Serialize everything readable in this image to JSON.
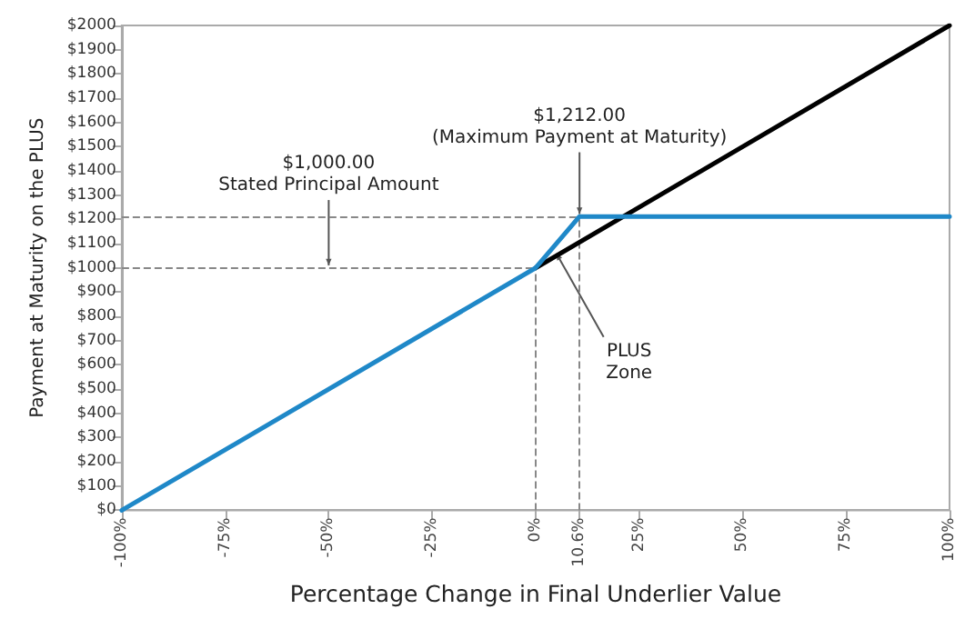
{
  "chart_data": {
    "type": "line",
    "xlabel": "Percentage Change in Final Underlier Value",
    "ylabel": "Payment at Maturity on the PLUS",
    "series": [
      {
        "color": "#000000",
        "x": [
          0,
          100
        ],
        "values": [
          1000,
          2000
        ]
      },
      {
        "color": "#1f88c8",
        "x": [
          -100,
          0,
          10.6,
          100
        ],
        "values": [
          0,
          1000,
          1212,
          1212
        ]
      }
    ],
    "xlim": [
      -100,
      100
    ],
    "xticks": [
      {
        "value": -100,
        "label": "-100%"
      },
      {
        "value": -75,
        "label": "-75%"
      },
      {
        "value": -50,
        "label": "-50%"
      },
      {
        "value": -25,
        "label": "-25%"
      },
      {
        "value": 0,
        "label": "0%"
      },
      {
        "value": 10.6,
        "label": "10.6%"
      },
      {
        "value": 25,
        "label": "25%"
      },
      {
        "value": 50,
        "label": "50%"
      },
      {
        "value": 75,
        "label": "75%"
      },
      {
        "value": 100,
        "label": "100%"
      }
    ],
    "ylim": [
      0,
      2000
    ],
    "yticks": [
      {
        "value": 0,
        "label": "$0"
      },
      {
        "value": 100,
        "label": "$100"
      },
      {
        "value": 200,
        "label": "$200"
      },
      {
        "value": 300,
        "label": "$300"
      },
      {
        "value": 400,
        "label": "$400"
      },
      {
        "value": 500,
        "label": "$500"
      },
      {
        "value": 600,
        "label": "$600"
      },
      {
        "value": 700,
        "label": "$700"
      },
      {
        "value": 800,
        "label": "$800"
      },
      {
        "value": 900,
        "label": "$900"
      },
      {
        "value": 1000,
        "label": "$1000"
      },
      {
        "value": 1100,
        "label": "$1100"
      },
      {
        "value": 1200,
        "label": "$1200"
      },
      {
        "value": 1300,
        "label": "$1300"
      },
      {
        "value": 1400,
        "label": "$1400"
      },
      {
        "value": 1500,
        "label": "$1500"
      },
      {
        "value": 1600,
        "label": "$1600"
      },
      {
        "value": 1700,
        "label": "$1700"
      },
      {
        "value": 1800,
        "label": "$1800"
      },
      {
        "value": 1900,
        "label": "$1900"
      },
      {
        "value": 2000,
        "label": "$2000"
      }
    ],
    "ref_lines": [
      {
        "axis": "y",
        "value": 1000,
        "color": "#888888",
        "line_style": "dashed"
      },
      {
        "axis": "y",
        "value": 1212,
        "color": "#888888",
        "line_style": "dashed"
      },
      {
        "axis": "x",
        "value": 0,
        "color": "#888888",
        "line_style": "dashed"
      },
      {
        "axis": "x",
        "value": 10.6,
        "color": "#888888",
        "line_style": "dashed"
      }
    ],
    "annotations": [
      {
        "text": "$1,000.00\nStated Principal Amount",
        "x": -50,
        "y": 1010
      },
      {
        "text": "$1,212.00\n(Maximum Payment at Maturity)",
        "x": 10.6,
        "y": 1222
      },
      {
        "text": "PLUS\nZone",
        "x": 5,
        "y": 1060
      }
    ],
    "grid": false,
    "marker": "none",
    "line_style": "solid"
  }
}
